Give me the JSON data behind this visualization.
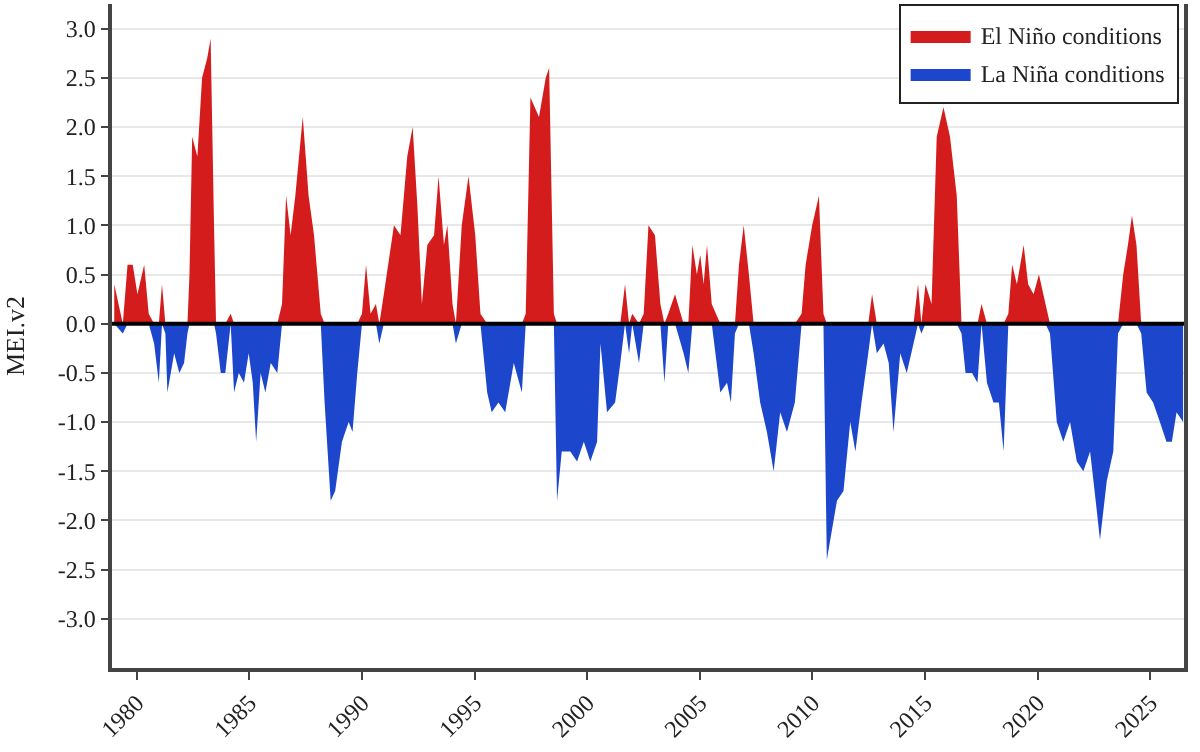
{
  "chart_data": {
    "type": "area",
    "ylabel": "MEI.v2",
    "x": [
      1979.0,
      1979.38,
      1979.59,
      1979.82,
      1980.03,
      1980.33,
      1980.53,
      1980.77,
      1980.98,
      1981.12,
      1981.27,
      1981.36,
      1981.66,
      1981.89,
      1982.1,
      1982.25,
      1982.34,
      1982.46,
      1982.69,
      1982.9,
      1983.13,
      1983.28,
      1983.43,
      1983.52,
      1983.73,
      1983.93,
      1984.17,
      1984.32,
      1984.53,
      1984.76,
      1984.97,
      1985.15,
      1985.3,
      1985.5,
      1985.71,
      1985.95,
      1986.24,
      1986.45,
      1986.63,
      1986.83,
      1987.04,
      1987.37,
      1987.63,
      1987.87,
      1988.17,
      1988.34,
      1988.61,
      1988.81,
      1989.11,
      1989.41,
      1989.58,
      1989.79,
      1990.0,
      1990.18,
      1990.38,
      1990.62,
      1990.77,
      1990.97,
      1991.42,
      1991.71,
      1992.01,
      1992.25,
      1992.46,
      1992.66,
      1992.9,
      1993.2,
      1993.4,
      1993.64,
      1993.79,
      1994.02,
      1994.17,
      1994.43,
      1994.73,
      1995.03,
      1995.26,
      1995.56,
      1995.76,
      1996.06,
      1996.36,
      1996.74,
      1997.1,
      1997.27,
      1997.48,
      1997.86,
      1998.16,
      1998.31,
      1998.52,
      1998.66,
      1998.87,
      1999.25,
      1999.55,
      1999.85,
      2000.14,
      2000.44,
      2000.59,
      2000.88,
      2001.24,
      2001.47,
      2001.68,
      2001.86,
      2002.0,
      2002.3,
      2002.51,
      2002.72,
      2003.01,
      2003.25,
      2003.43,
      2003.6,
      2003.9,
      2004.28,
      2004.49,
      2004.67,
      2004.87,
      2005.02,
      2005.17,
      2005.32,
      2005.53,
      2005.91,
      2006.21,
      2006.38,
      2006.56,
      2006.74,
      2006.95,
      2007.18,
      2007.39,
      2007.68,
      2007.98,
      2008.28,
      2008.57,
      2008.87,
      2009.22,
      2009.52,
      2009.7,
      2009.99,
      2010.29,
      2010.49,
      2010.64,
      2011.09,
      2011.38,
      2011.68,
      2011.91,
      2012.18,
      2012.48,
      2012.65,
      2012.86,
      2013.16,
      2013.39,
      2013.6,
      2013.9,
      2014.19,
      2014.49,
      2014.69,
      2014.84,
      2015.02,
      2015.29,
      2015.52,
      2015.82,
      2016.11,
      2016.41,
      2016.62,
      2016.8,
      2017.09,
      2017.33,
      2017.51,
      2017.75,
      2018.04,
      2018.28,
      2018.49,
      2018.7,
      2018.87,
      2019.08,
      2019.38,
      2019.58,
      2019.82,
      2020.06,
      2020.35,
      2020.55,
      2020.85,
      2021.14,
      2021.44,
      2021.74,
      2022.03,
      2022.33,
      2022.53,
      2022.77,
      2023.07,
      2023.36,
      2023.57,
      2023.8,
      2024.01,
      2024.19,
      2024.39,
      2024.6,
      2024.84,
      2025.13,
      2025.43,
      2025.72,
      2025.96,
      2026.17,
      2026.46
    ],
    "series": [
      {
        "name": "El Niño conditions",
        "color": "#d41c1c",
        "values": [
          0.4,
          0,
          0.6,
          0.6,
          0.3,
          0.6,
          0.1,
          0,
          0,
          0.4,
          0,
          0,
          0,
          0,
          0,
          0,
          0.5,
          1.9,
          1.7,
          2.5,
          2.7,
          2.9,
          1.0,
          0,
          0,
          0,
          0.1,
          0,
          0,
          0,
          0,
          0,
          0,
          0,
          0,
          0,
          0,
          0.2,
          1.3,
          0.9,
          1.3,
          2.1,
          1.3,
          0.9,
          0.1,
          0,
          0,
          0,
          0,
          0,
          0,
          0,
          0.1,
          0.6,
          0.1,
          0.2,
          0,
          0.3,
          1.0,
          0.9,
          1.7,
          2.0,
          1.2,
          0.2,
          0.8,
          0.9,
          1.5,
          0.8,
          1.0,
          0.2,
          0,
          1.0,
          1.5,
          0.9,
          0.1,
          0,
          0,
          0,
          0,
          0,
          0,
          0.1,
          2.3,
          2.1,
          2.5,
          2.6,
          0.1,
          0,
          0,
          0,
          0,
          0,
          0,
          0,
          0,
          0,
          0,
          0,
          0.4,
          0,
          0.1,
          0,
          0.1,
          1.0,
          0.9,
          0.2,
          0,
          0.1,
          0.3,
          0,
          0,
          0.8,
          0.5,
          0.7,
          0.4,
          0.8,
          0.2,
          0,
          0,
          0,
          0,
          0.6,
          1.0,
          0.5,
          0,
          0,
          0,
          0,
          0,
          0,
          0,
          0.1,
          0.6,
          1.0,
          1.3,
          0.1,
          0,
          0,
          0,
          0,
          0,
          0,
          0,
          0.3,
          0,
          0,
          0,
          0,
          0,
          0,
          0,
          0.4,
          0,
          0.4,
          0.2,
          1.9,
          2.2,
          1.9,
          1.3,
          0,
          0,
          0,
          0,
          0.2,
          0,
          0,
          0,
          0,
          0.1,
          0.6,
          0.4,
          0.8,
          0.4,
          0.3,
          0.5,
          0.2,
          0,
          0,
          0,
          0,
          0,
          0,
          0,
          0,
          0,
          0,
          0,
          0,
          0.5,
          0.8,
          1.1,
          0.8,
          0,
          0,
          0,
          0,
          0,
          0,
          0,
          0
        ]
      },
      {
        "name": "La Niña conditions",
        "color": "#1c46cc",
        "values": [
          0,
          -0.1,
          0,
          0,
          0,
          0,
          0,
          -0.2,
          -0.6,
          0,
          -0.1,
          -0.7,
          -0.3,
          -0.5,
          -0.4,
          -0.1,
          0,
          0,
          0,
          0,
          0,
          0,
          0,
          -0.1,
          -0.5,
          -0.5,
          0,
          -0.7,
          -0.5,
          -0.6,
          -0.3,
          -0.6,
          -1.2,
          -0.5,
          -0.7,
          -0.4,
          -0.5,
          0,
          0,
          0,
          0,
          0,
          0,
          0,
          0,
          -0.8,
          -1.8,
          -1.7,
          -1.2,
          -1.0,
          -1.1,
          -0.5,
          0,
          0,
          0,
          0,
          -0.2,
          0,
          0,
          0,
          0,
          0,
          0,
          0,
          0,
          0,
          0,
          0,
          0,
          0,
          -0.2,
          0,
          0,
          0,
          0,
          -0.7,
          -0.9,
          -0.8,
          -0.9,
          -0.4,
          -0.7,
          0,
          0,
          0,
          0,
          0,
          0,
          -1.8,
          -1.3,
          -1.3,
          -1.4,
          -1.2,
          -1.4,
          -1.2,
          -0.2,
          -0.9,
          -0.8,
          -0.4,
          0,
          -0.3,
          0,
          -0.4,
          0,
          0,
          0,
          0,
          -0.6,
          0,
          0,
          -0.3,
          -0.5,
          0,
          0,
          0,
          0,
          0,
          0,
          -0.7,
          -0.6,
          -0.8,
          -0.1,
          0,
          0,
          0,
          -0.3,
          -0.8,
          -1.1,
          -1.5,
          -0.9,
          -1.1,
          -0.8,
          0,
          0,
          0,
          0,
          0,
          -2.4,
          -1.8,
          -1.7,
          -1.0,
          -1.3,
          -0.8,
          -0.3,
          0,
          -0.3,
          -0.2,
          -0.4,
          -1.1,
          -0.3,
          -0.5,
          -0.2,
          0,
          -0.1,
          0,
          0,
          0,
          0,
          0,
          0,
          -0.1,
          -0.5,
          -0.5,
          -0.6,
          0,
          -0.6,
          -0.8,
          -0.8,
          -1.3,
          0,
          0,
          0,
          0,
          0,
          0,
          0,
          0,
          -0.1,
          -1.0,
          -1.2,
          -1.0,
          -1.4,
          -1.5,
          -1.3,
          -1.7,
          -2.2,
          -1.6,
          -1.3,
          -0.1,
          0,
          0,
          0,
          0,
          -0.1,
          -0.7,
          -0.8,
          -1.0,
          -1.2,
          -1.2,
          -0.9,
          -1.0
        ]
      }
    ],
    "xlim": [
      1978.9,
      2026.5
    ],
    "xticks": [
      1980,
      1985,
      1990,
      1995,
      2000,
      2005,
      2010,
      2015,
      2020,
      2025
    ],
    "ylim": [
      -3.5,
      3.25
    ],
    "yticks": [
      {
        "value": 3,
        "label": "3.0"
      },
      {
        "value": 2.5,
        "label": "2.5"
      },
      {
        "value": 2,
        "label": "2.0"
      },
      {
        "value": 1.5,
        "label": "1.5"
      },
      {
        "value": 1,
        "label": "1.0"
      },
      {
        "value": 0.5,
        "label": "0.5"
      },
      {
        "value": 0,
        "label": "0.0"
      },
      {
        "value": -0.5,
        "label": "-0.5"
      },
      {
        "value": -1,
        "label": "-1.0"
      },
      {
        "value": -1.5,
        "label": "-1.5"
      },
      {
        "value": -2,
        "label": "-2.0"
      },
      {
        "value": -2.5,
        "label": "-2.5"
      },
      {
        "value": -3,
        "label": "-3.0"
      }
    ],
    "ref_lines": [
      {
        "axis": "y",
        "value": 0,
        "color": "#000000"
      }
    ],
    "grid": "y",
    "legend": "top right"
  }
}
